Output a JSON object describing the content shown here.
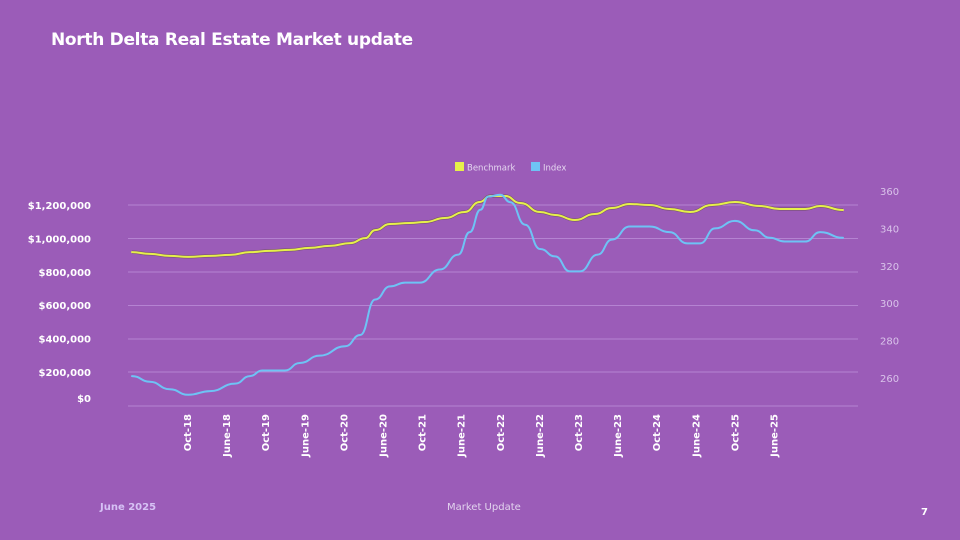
{
  "header": {
    "title": "North Delta Real Estate Market update"
  },
  "footer": {
    "date": "June 2025",
    "center": "Market Update",
    "page": "7"
  },
  "colors": {
    "background": "#9b5cb8",
    "benchmark": "#e6f04a",
    "index": "#6ec3f5",
    "grid": "#b583d2"
  },
  "chart_data": {
    "type": "line",
    "title": "",
    "legend": {
      "placement": "top-center",
      "entries": [
        "Benchmark",
        "Index"
      ]
    },
    "x_tick_labels": [
      "Oct-18",
      "June-18",
      "Oct-19",
      "June-19",
      "Oct-20",
      "June-20",
      "Oct-21",
      "June-21",
      "Oct-22",
      "June-22",
      "Oct-23",
      "June-23",
      "Oct-24",
      "June-24",
      "Oct-25",
      "June-25"
    ],
    "y_left": {
      "ticks": [
        0,
        200000,
        400000,
        600000,
        800000,
        1000000,
        1200000
      ],
      "tick_labels": [
        "$0",
        "$200,000",
        "$400,000",
        "$600,000",
        "$800,000",
        "$1,000,000",
        "$1,200,000"
      ],
      "range": [
        0,
        1300000
      ]
    },
    "y_right": {
      "ticks": [
        260,
        280,
        300,
        320,
        340,
        360
      ],
      "tick_labels": [
        "260",
        "280",
        "300",
        "320",
        "340",
        "360"
      ],
      "range": [
        250,
        360
      ]
    },
    "grid": true,
    "x_range": [
      0,
      100
    ],
    "series": [
      {
        "name": "Benchmark",
        "axis": "left",
        "x": [
          0,
          2.5,
          5.3,
          7.9,
          11,
          13.8,
          16.6,
          19.4,
          22.2,
          25,
          27.8,
          30.7,
          32.8,
          34.2,
          36.3,
          39.1,
          41.2,
          44.0,
          46.8,
          48.9,
          50.4,
          52.5,
          54.6,
          57.4,
          59.5,
          62.3,
          65.1,
          67.5,
          70.0,
          72.8,
          75.6,
          78.5,
          81.6,
          84.8,
          88.3,
          91.1,
          94.7,
          96.8,
          100
        ],
        "values": [
          918000,
          907000,
          895000,
          889000,
          895000,
          901000,
          918000,
          925000,
          931000,
          943000,
          955000,
          972000,
          1002000,
          1050000,
          1086000,
          1092000,
          1098000,
          1122000,
          1158000,
          1218000,
          1254000,
          1254000,
          1212000,
          1158000,
          1140000,
          1110000,
          1146000,
          1182000,
          1206000,
          1200000,
          1176000,
          1158000,
          1200000,
          1218000,
          1194000,
          1176000,
          1176000,
          1194000,
          1170000
        ]
      },
      {
        "name": "Index",
        "axis": "right",
        "x": [
          0,
          2.5,
          5.3,
          7.9,
          11,
          14.5,
          16.6,
          18.3,
          21.5,
          23.6,
          26.4,
          30.0,
          32.1,
          34.2,
          36.3,
          38.4,
          40.5,
          43.3,
          45.9,
          47.5,
          49.0,
          50.1,
          51.8,
          53.2,
          55.3,
          57.4,
          59.5,
          61.6,
          63.0,
          65.5,
          67.5,
          70.0,
          72.8,
          75.6,
          78.1,
          79.9,
          82.0,
          84.8,
          87.6,
          89.7,
          91.8,
          94.7,
          96.8,
          100
        ],
        "values": [
          261,
          258,
          254,
          251,
          253,
          257,
          261,
          264,
          264,
          268,
          272,
          277,
          283,
          302,
          309,
          311,
          311,
          318,
          326,
          338,
          350,
          357,
          358,
          354,
          342,
          329,
          325,
          317,
          317,
          326,
          334,
          341,
          341,
          338,
          332,
          332,
          340,
          344,
          339,
          335,
          333,
          333,
          338,
          335
        ]
      }
    ]
  }
}
